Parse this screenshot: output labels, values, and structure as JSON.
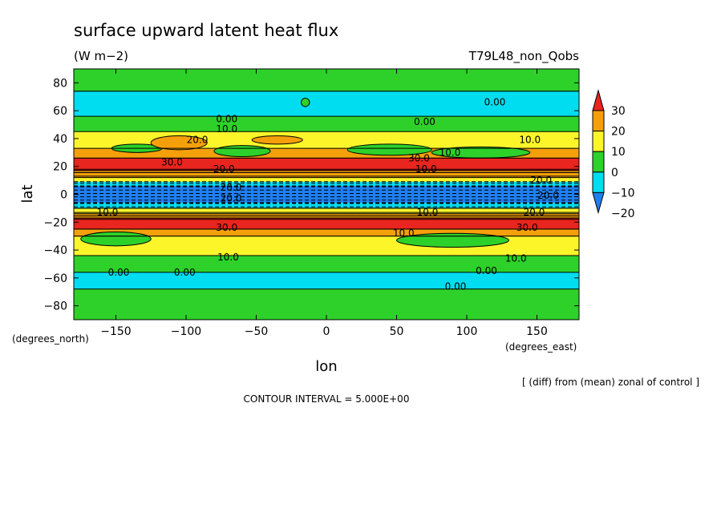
{
  "chart_data": {
    "type": "heatmap",
    "title": "surface upward latent heat flux",
    "units": "(W m−2)",
    "run_label": "T79L48_non_Qobs",
    "xlabel": "lon",
    "ylabel": "lat",
    "x_unit_label": "(degrees_east)",
    "y_unit_label": "(degrees_north)",
    "note": "[ (diff) from (mean) zonal of control ]",
    "contour_interval": "CONTOUR INTERVAL = 5.000E+00",
    "xlim": [
      -180,
      180
    ],
    "ylim": [
      -90,
      90
    ],
    "x_ticks": [
      -150,
      -100,
      -50,
      0,
      50,
      100,
      150
    ],
    "x_tick_labels": [
      "−150",
      "−100",
      "−50",
      "0",
      "50",
      "100",
      "150"
    ],
    "y_ticks": [
      80,
      60,
      40,
      20,
      0,
      -20,
      -40,
      -60,
      -80
    ],
    "y_tick_labels": [
      "80",
      "60",
      "40",
      "20",
      "0",
      "−20",
      "−40",
      "−60",
      "−80"
    ],
    "colorbar": {
      "levels": [
        30,
        20,
        10,
        0,
        -10,
        -20
      ],
      "labels": [
        "30",
        "20",
        "10",
        "0",
        "−10",
        "−20"
      ],
      "colors": [
        "#e8251e",
        "#f5a00a",
        "#fbf52a",
        "#2ed12a",
        "#00ddf0",
        "#1f7ff0"
      ]
    },
    "latitude_bands": [
      {
        "lat_top": 90,
        "lat_bottom": 74,
        "value_class": 0
      },
      {
        "lat_top": 74,
        "lat_bottom": 56,
        "value_class": -10
      },
      {
        "lat_top": 56,
        "lat_bottom": 45,
        "value_class": 0
      },
      {
        "lat_top": 45,
        "lat_bottom": 33,
        "value_class": 10
      },
      {
        "lat_top": 33,
        "lat_bottom": 26,
        "value_class": 20
      },
      {
        "lat_top": 26,
        "lat_bottom": 17,
        "value_class": 30
      },
      {
        "lat_top": 17,
        "lat_bottom": 12,
        "value_class": 20
      },
      {
        "lat_top": 12,
        "lat_bottom": 9,
        "value_class": 10
      },
      {
        "lat_top": 9,
        "lat_bottom": 6,
        "value_class": -10
      },
      {
        "lat_top": 6,
        "lat_bottom": -6,
        "value_class": -20
      },
      {
        "lat_top": -6,
        "lat_bottom": -10,
        "value_class": -10
      },
      {
        "lat_top": -10,
        "lat_bottom": -14,
        "value_class": 10
      },
      {
        "lat_top": -14,
        "lat_bottom": -17,
        "value_class": 20
      },
      {
        "lat_top": -17,
        "lat_bottom": -25,
        "value_class": 30
      },
      {
        "lat_top": -25,
        "lat_bottom": -30,
        "value_class": 20
      },
      {
        "lat_top": -30,
        "lat_bottom": -44,
        "value_class": 10
      },
      {
        "lat_top": -44,
        "lat_bottom": -56,
        "value_class": 0
      },
      {
        "lat_top": -56,
        "lat_bottom": -68,
        "value_class": -10
      },
      {
        "lat_top": -68,
        "lat_bottom": -90,
        "value_class": 0
      }
    ],
    "patches": [
      {
        "lon": -135,
        "lat": 33,
        "rlon": 18,
        "rlat": 3,
        "value_class": 0
      },
      {
        "lon": -105,
        "lat": 37,
        "rlon": 20,
        "rlat": 5,
        "value_class": 20
      },
      {
        "lon": -60,
        "lat": 31,
        "rlon": 20,
        "rlat": 4,
        "value_class": 0
      },
      {
        "lon": -35,
        "lat": 39,
        "rlon": 18,
        "rlat": 3,
        "value_class": 20
      },
      {
        "lon": 45,
        "lat": 32,
        "rlon": 30,
        "rlat": 4,
        "value_class": 0
      },
      {
        "lon": 110,
        "lat": 30,
        "rlon": 35,
        "rlat": 4,
        "value_class": 0
      },
      {
        "lon": -150,
        "lat": -32,
        "rlon": 25,
        "rlat": 5,
        "value_class": 0
      },
      {
        "lon": 90,
        "lat": -33,
        "rlon": 40,
        "rlat": 5,
        "value_class": 0
      },
      {
        "lon": -15,
        "lat": 66,
        "rlon": 3,
        "rlat": 3,
        "value_class": 0
      }
    ],
    "contour_labels": [
      {
        "text": "0.00",
        "lon": 120,
        "lat": 66
      },
      {
        "text": "0.00",
        "lon": 70,
        "lat": 52
      },
      {
        "text": "0.00",
        "lon": -71,
        "lat": 54
      },
      {
        "text": "10.0",
        "lon": -71,
        "lat": 47
      },
      {
        "text": "20.0",
        "lon": -92,
        "lat": 39
      },
      {
        "text": "10.0",
        "lon": 145,
        "lat": 39
      },
      {
        "text": "10.0",
        "lon": 88,
        "lat": 30
      },
      {
        "text": "30.0",
        "lon": -110,
        "lat": 23
      },
      {
        "text": "30.0",
        "lon": 66,
        "lat": 26
      },
      {
        "text": "10.0",
        "lon": 71,
        "lat": 18
      },
      {
        "text": "20.0",
        "lon": -73,
        "lat": 18
      },
      {
        "text": "20.0",
        "lon": -68,
        "lat": 5
      },
      {
        "text": "20.0",
        "lon": -68,
        "lat": -3
      },
      {
        "text": "20.0",
        "lon": 153,
        "lat": 10
      },
      {
        "text": "20.0",
        "lon": 158,
        "lat": -1
      },
      {
        "text": "10.0",
        "lon": -156,
        "lat": -13
      },
      {
        "text": "10.0",
        "lon": 72,
        "lat": -13
      },
      {
        "text": "20.0",
        "lon": 148,
        "lat": -13
      },
      {
        "text": "30.0",
        "lon": -71,
        "lat": -24
      },
      {
        "text": "30.0",
        "lon": 143,
        "lat": -24
      },
      {
        "text": "10.0",
        "lon": 55,
        "lat": -28
      },
      {
        "text": "10.0",
        "lon": -70,
        "lat": -45
      },
      {
        "text": "10.0",
        "lon": 135,
        "lat": -46
      },
      {
        "text": "0.00",
        "lon": -148,
        "lat": -56
      },
      {
        "text": "0.00",
        "lon": -101,
        "lat": -56
      },
      {
        "text": "0.00",
        "lon": 114,
        "lat": -55
      },
      {
        "text": "0.00",
        "lon": 92,
        "lat": -66
      }
    ]
  }
}
